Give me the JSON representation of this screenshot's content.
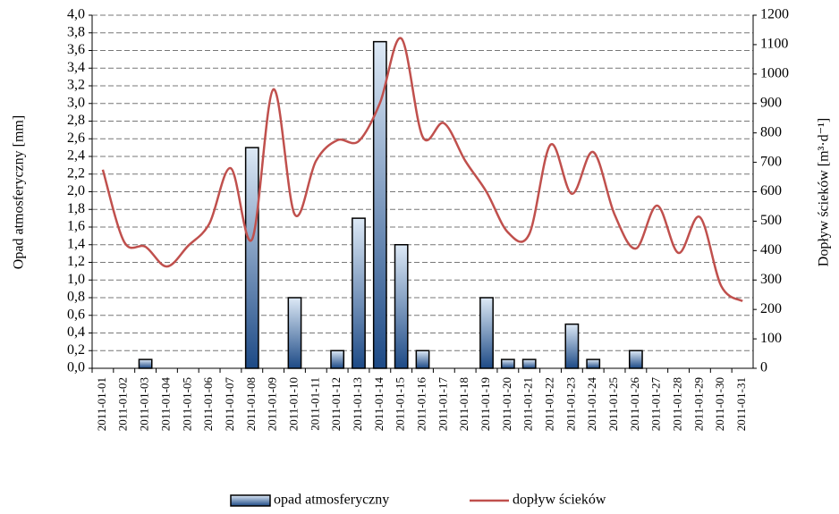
{
  "chart_data": {
    "type": "bar-line",
    "y_label": "Opad atmosferyczny [mm]",
    "y2_label": "Dopływ ścieków [m³·d⁻¹]",
    "categories": [
      "2011-01-01",
      "2011-01-02",
      "2011-01-03",
      "2011-01-04",
      "2011-01-05",
      "2011-01-06",
      "2011-01-07",
      "2011-01-08",
      "2011-01-09",
      "2011-01-10",
      "2011-01-11",
      "2011-01-12",
      "2011-01-13",
      "2011-01-14",
      "2011-01-15",
      "2011-01-16",
      "2011-01-17",
      "2011-01-18",
      "2011-01-19",
      "2011-01-20",
      "2011-01-21",
      "2011-01-22",
      "2011-01-23",
      "2011-01-24",
      "2011-01-25",
      "2011-01-26",
      "2011-01-27",
      "2011-01-28",
      "2011-01-29",
      "2011-01-30",
      "2011-01-31"
    ],
    "series": [
      {
        "name": "opad atmosferyczny",
        "type": "bar",
        "color": "#1d4a86",
        "values": [
          0,
          0,
          0.1,
          0,
          0,
          0,
          0,
          2.5,
          0,
          0.8,
          0,
          0.2,
          1.7,
          3.7,
          1.4,
          0.2,
          0,
          0,
          0.8,
          0.1,
          0.1,
          0,
          0.5,
          0.1,
          0,
          0.2,
          0,
          0,
          0,
          0,
          0
        ]
      },
      {
        "name": "dopływ ścieków",
        "type": "line",
        "axis": "y2",
        "color": "#c0504d",
        "values": [
          675,
          430,
          413,
          346,
          416,
          492,
          680,
          438,
          948,
          523,
          705,
          775,
          772,
          902,
          1121,
          787,
          833,
          705,
          599,
          462,
          456,
          760,
          593,
          735,
          523,
          407,
          553,
          392,
          514,
          280,
          228
        ]
      }
    ],
    "ylim": [
      0,
      4
    ],
    "yticks": [
      {
        "value": 0,
        "label": "0,0"
      },
      {
        "value": 0.2,
        "label": "0,2"
      },
      {
        "value": 0.4,
        "label": "0,4"
      },
      {
        "value": 0.6,
        "label": "0,6"
      },
      {
        "value": 0.8,
        "label": "0,8"
      },
      {
        "value": 1,
        "label": "1,0"
      },
      {
        "value": 1.2,
        "label": "1,2"
      },
      {
        "value": 1.4,
        "label": "1,4"
      },
      {
        "value": 1.6,
        "label": "1,6"
      },
      {
        "value": 1.8,
        "label": "1,8"
      },
      {
        "value": 2,
        "label": "2,0"
      },
      {
        "value": 2.2,
        "label": "2,2"
      },
      {
        "value": 2.4,
        "label": "2,4"
      },
      {
        "value": 2.6,
        "label": "2,6"
      },
      {
        "value": 2.8,
        "label": "2,8"
      },
      {
        "value": 3,
        "label": "3,0"
      },
      {
        "value": 3.2,
        "label": "3,2"
      },
      {
        "value": 3.4,
        "label": "3,4"
      },
      {
        "value": 3.6,
        "label": "3,6"
      },
      {
        "value": 3.8,
        "label": "3,8"
      },
      {
        "value": 4,
        "label": "4,0"
      }
    ],
    "y2lim": [
      0,
      1200
    ],
    "y2ticks": [
      0,
      100,
      200,
      300,
      400,
      500,
      600,
      700,
      800,
      900,
      1000,
      1100,
      1200
    ],
    "grid": true
  }
}
